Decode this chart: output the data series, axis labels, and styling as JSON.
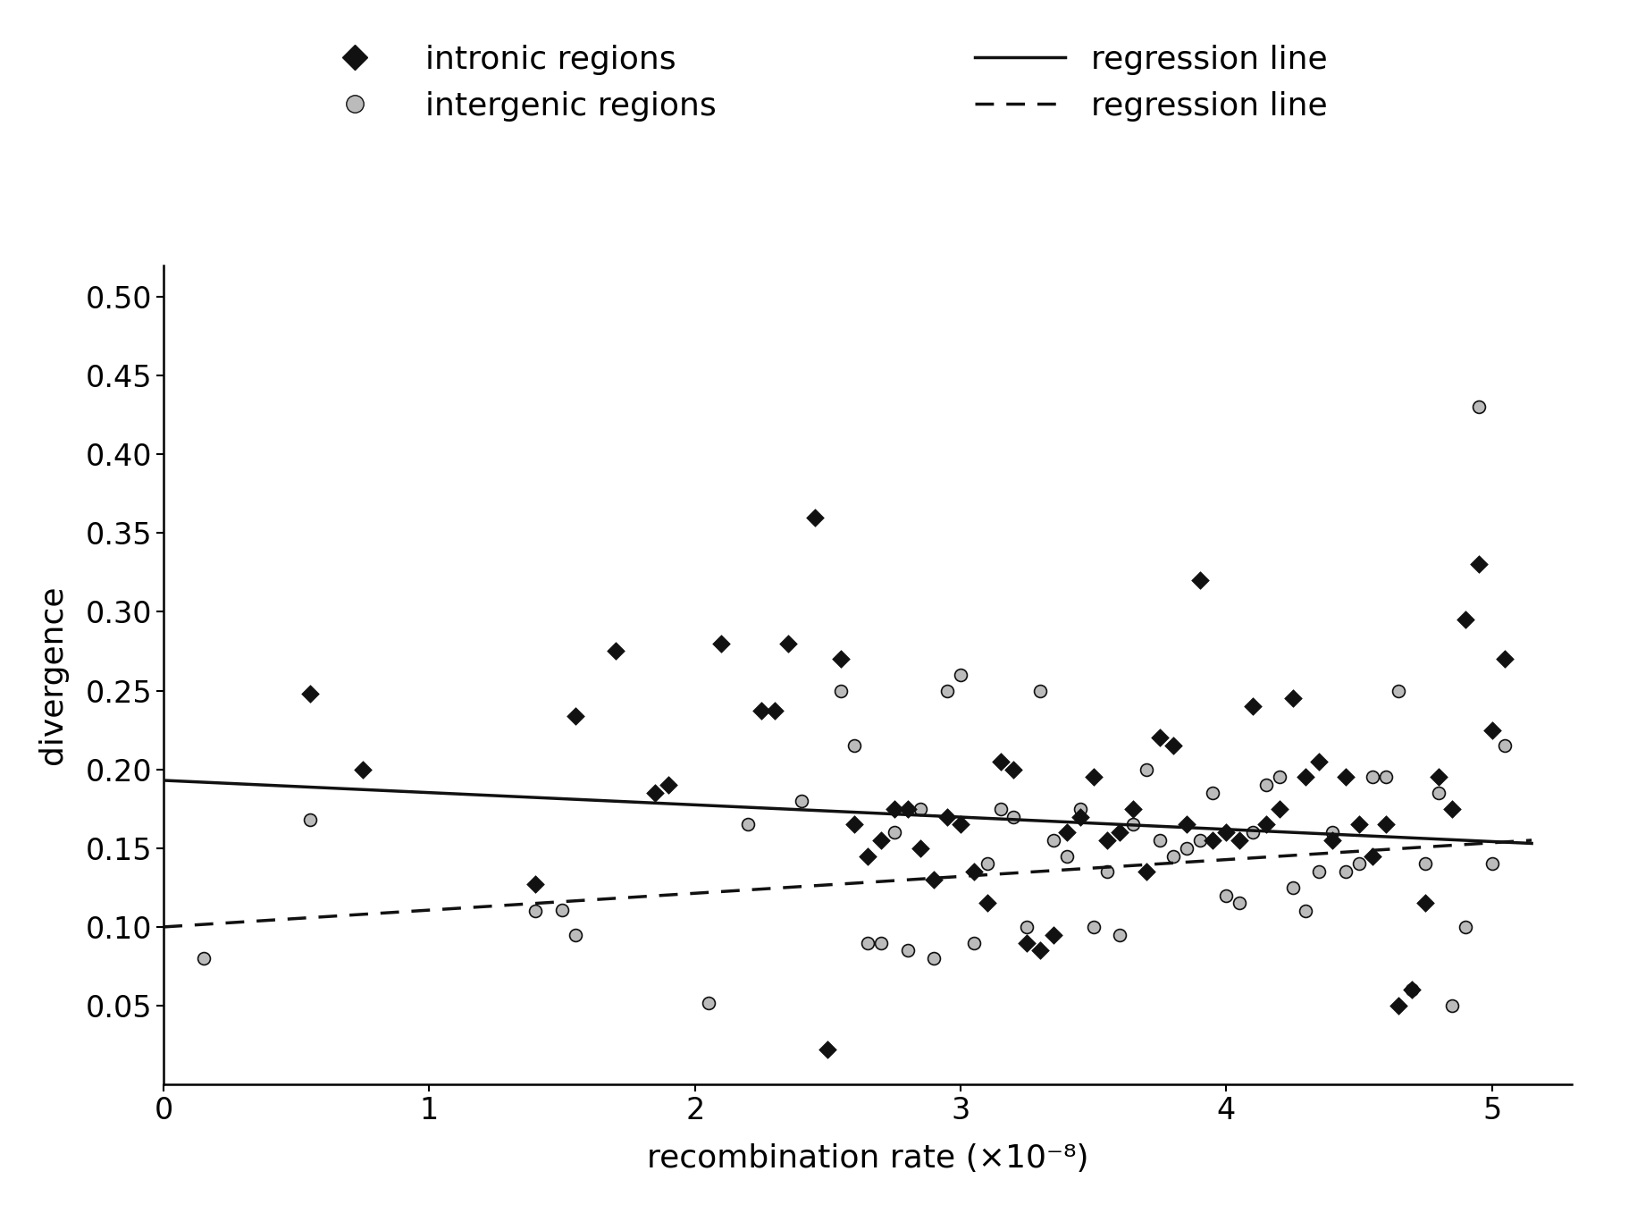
{
  "intronic_x": [
    0.55,
    0.75,
    1.4,
    1.55,
    1.7,
    1.85,
    1.9,
    2.1,
    2.25,
    2.3,
    2.35,
    2.45,
    2.5,
    2.55,
    2.6,
    2.65,
    2.7,
    2.75,
    2.8,
    2.85,
    2.9,
    2.95,
    3.0,
    3.05,
    3.1,
    3.15,
    3.2,
    3.25,
    3.3,
    3.35,
    3.4,
    3.45,
    3.5,
    3.55,
    3.6,
    3.65,
    3.7,
    3.75,
    3.8,
    3.85,
    3.9,
    3.95,
    4.0,
    4.05,
    4.1,
    4.15,
    4.2,
    4.25,
    4.3,
    4.35,
    4.4,
    4.45,
    4.5,
    4.55,
    4.6,
    4.65,
    4.7,
    4.75,
    4.8,
    4.85,
    4.9,
    4.95,
    5.0,
    5.05
  ],
  "intronic_y": [
    0.248,
    0.2,
    0.127,
    0.234,
    0.275,
    0.185,
    0.19,
    0.28,
    0.237,
    0.237,
    0.28,
    0.36,
    0.022,
    0.27,
    0.165,
    0.145,
    0.155,
    0.175,
    0.175,
    0.15,
    0.13,
    0.17,
    0.165,
    0.135,
    0.115,
    0.205,
    0.2,
    0.09,
    0.085,
    0.095,
    0.16,
    0.17,
    0.195,
    0.155,
    0.16,
    0.175,
    0.135,
    0.22,
    0.215,
    0.165,
    0.32,
    0.155,
    0.16,
    0.155,
    0.24,
    0.165,
    0.175,
    0.245,
    0.195,
    0.205,
    0.155,
    0.195,
    0.165,
    0.145,
    0.165,
    0.05,
    0.06,
    0.115,
    0.195,
    0.175,
    0.295,
    0.33,
    0.225,
    0.27
  ],
  "intergenic_x": [
    0.15,
    0.55,
    1.4,
    1.5,
    1.55,
    2.05,
    2.2,
    2.4,
    2.55,
    2.6,
    2.65,
    2.7,
    2.75,
    2.8,
    2.85,
    2.9,
    2.95,
    3.0,
    3.05,
    3.1,
    3.15,
    3.2,
    3.25,
    3.3,
    3.35,
    3.4,
    3.45,
    3.5,
    3.55,
    3.6,
    3.65,
    3.7,
    3.75,
    3.8,
    3.85,
    3.9,
    3.95,
    4.0,
    4.05,
    4.1,
    4.15,
    4.2,
    4.25,
    4.3,
    4.35,
    4.4,
    4.45,
    4.5,
    4.55,
    4.6,
    4.65,
    4.7,
    4.75,
    4.8,
    4.85,
    4.9,
    4.95,
    5.0,
    5.05
  ],
  "intergenic_y": [
    0.08,
    0.168,
    0.11,
    0.111,
    0.095,
    0.052,
    0.165,
    0.18,
    0.25,
    0.215,
    0.09,
    0.09,
    0.16,
    0.085,
    0.175,
    0.08,
    0.25,
    0.26,
    0.09,
    0.14,
    0.175,
    0.17,
    0.1,
    0.25,
    0.155,
    0.145,
    0.175,
    0.1,
    0.135,
    0.095,
    0.165,
    0.2,
    0.155,
    0.145,
    0.15,
    0.155,
    0.185,
    0.12,
    0.115,
    0.16,
    0.19,
    0.195,
    0.125,
    0.11,
    0.135,
    0.16,
    0.135,
    0.14,
    0.195,
    0.195,
    0.25,
    0.06,
    0.14,
    0.185,
    0.05,
    0.1,
    0.43,
    0.14,
    0.215
  ],
  "intronic_line_x": [
    0.0,
    5.15
  ],
  "intronic_line_y": [
    0.193,
    0.153
  ],
  "intergenic_line_x": [
    0.0,
    5.15
  ],
  "intergenic_line_y": [
    0.1,
    0.155
  ],
  "xlabel": "recombination rate (×10⁻⁸)",
  "ylabel": "divergence",
  "xlim": [
    0,
    5.3
  ],
  "ylim": [
    0.0,
    0.52
  ],
  "yticks": [
    0.05,
    0.1,
    0.15,
    0.2,
    0.25,
    0.3,
    0.35,
    0.4,
    0.45,
    0.5
  ],
  "xticks": [
    0,
    1,
    2,
    3,
    4,
    5
  ],
  "intronic_color": "#111111",
  "intergenic_color": "#bbbbbb",
  "intronic_edge": "#111111",
  "intergenic_edge": "#111111",
  "marker_size": 100,
  "line_color": "#111111",
  "font_size": 26,
  "tick_font_size": 24,
  "legend_font_size": 26
}
